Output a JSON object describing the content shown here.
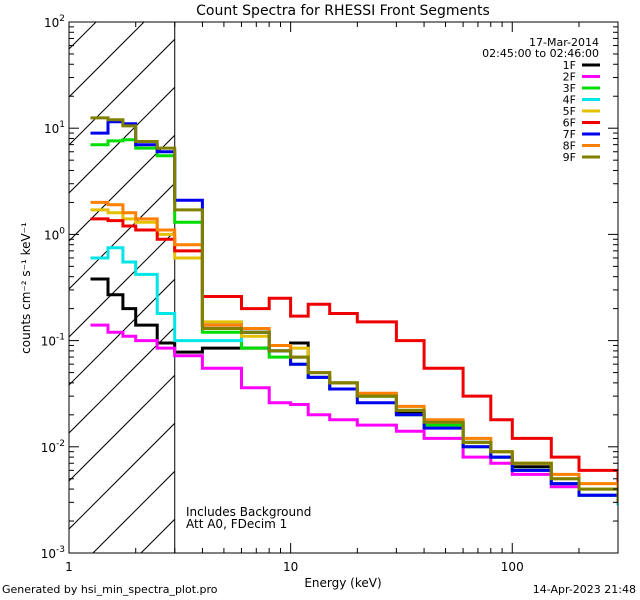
{
  "chart_data": {
    "type": "line",
    "title": "Count Spectra for RHESSI Front Segments",
    "xlabel": "Energy (keV)",
    "ylabel": "counts cm⁻² s⁻¹ keV⁻¹",
    "xscale": "log",
    "yscale": "log",
    "xlim": [
      1,
      300
    ],
    "ylim": [
      0.001,
      100
    ],
    "x_ticks": [
      {
        "value": 1,
        "label": "1"
      },
      {
        "value": 10,
        "label": "10"
      },
      {
        "value": 100,
        "label": "100"
      }
    ],
    "y_ticks": [
      {
        "value": 0.001,
        "base": "10",
        "exp": "-3"
      },
      {
        "value": 0.01,
        "base": "10",
        "exp": "-2"
      },
      {
        "value": 0.1,
        "base": "10",
        "exp": "-1"
      },
      {
        "value": 1,
        "base": "10",
        "exp": "0"
      },
      {
        "value": 10,
        "base": "10",
        "exp": "1"
      },
      {
        "value": 100,
        "base": "10",
        "exp": "2"
      }
    ],
    "date": "17-Mar-2014",
    "time_range": "02:45:00 to 02:46:00",
    "hatched_region_upper_kev": 3,
    "annotations": [
      "Includes Background",
      "Att A0, FDecim 1"
    ],
    "series": [
      {
        "name": "1F",
        "color": "#000000",
        "points": [
          [
            1.25,
            0.38
          ],
          [
            1.5,
            0.27
          ],
          [
            1.75,
            0.2
          ],
          [
            2.0,
            0.14
          ],
          [
            2.5,
            0.095
          ],
          [
            3.0,
            0.078
          ],
          [
            4,
            0.085
          ],
          [
            6,
            0.085
          ],
          [
            8,
            0.08
          ],
          [
            10,
            0.095
          ],
          [
            12,
            0.045
          ],
          [
            15,
            0.04
          ],
          [
            20,
            0.03
          ],
          [
            30,
            0.021
          ],
          [
            40,
            0.017
          ],
          [
            60,
            0.011
          ],
          [
            80,
            0.008
          ],
          [
            100,
            0.0065
          ],
          [
            150,
            0.0045
          ],
          [
            200,
            0.0035
          ],
          [
            300,
            0.0028
          ]
        ]
      },
      {
        "name": "2F",
        "color": "#ff00ff",
        "points": [
          [
            1.25,
            0.14
          ],
          [
            1.5,
            0.12
          ],
          [
            1.75,
            0.11
          ],
          [
            2.0,
            0.1
          ],
          [
            2.5,
            0.085
          ],
          [
            3.0,
            0.072
          ],
          [
            4,
            0.055
          ],
          [
            6,
            0.036
          ],
          [
            8,
            0.026
          ],
          [
            10,
            0.025
          ],
          [
            12,
            0.02
          ],
          [
            15,
            0.018
          ],
          [
            20,
            0.016
          ],
          [
            30,
            0.014
          ],
          [
            40,
            0.012
          ],
          [
            60,
            0.008
          ],
          [
            80,
            0.007
          ],
          [
            100,
            0.0055
          ],
          [
            150,
            0.0042
          ],
          [
            200,
            0.0035
          ],
          [
            300,
            0.0028
          ]
        ]
      },
      {
        "name": "3F",
        "color": "#00dd00",
        "points": [
          [
            1.25,
            7.0
          ],
          [
            1.5,
            7.6
          ],
          [
            1.75,
            7.8
          ],
          [
            2.0,
            6.5
          ],
          [
            2.5,
            5.5
          ],
          [
            3.0,
            1.3
          ],
          [
            4,
            0.12
          ],
          [
            6,
            0.085
          ],
          [
            8,
            0.07
          ],
          [
            10,
            0.06
          ],
          [
            12,
            0.045
          ],
          [
            15,
            0.035
          ],
          [
            20,
            0.03
          ],
          [
            30,
            0.02
          ],
          [
            40,
            0.016
          ],
          [
            60,
            0.01
          ],
          [
            80,
            0.008
          ],
          [
            100,
            0.006
          ],
          [
            150,
            0.0045
          ],
          [
            200,
            0.0035
          ],
          [
            300,
            0.003
          ]
        ]
      },
      {
        "name": "4F",
        "color": "#00e5e5",
        "points": [
          [
            1.25,
            0.6
          ],
          [
            1.5,
            0.75
          ],
          [
            1.75,
            0.55
          ],
          [
            2.0,
            0.42
          ],
          [
            2.5,
            0.18
          ],
          [
            3.0,
            0.1
          ],
          [
            4,
            0.1
          ],
          [
            6,
            0.12
          ],
          [
            8,
            0.08
          ],
          [
            10,
            0.07
          ],
          [
            12,
            0.045
          ],
          [
            15,
            0.035
          ],
          [
            20,
            0.03
          ],
          [
            30,
            0.022
          ],
          [
            40,
            0.017
          ],
          [
            60,
            0.011
          ],
          [
            80,
            0.008
          ],
          [
            100,
            0.006
          ],
          [
            150,
            0.0045
          ],
          [
            200,
            0.0035
          ],
          [
            300,
            0.0028
          ]
        ]
      },
      {
        "name": "5F",
        "color": "#e5c000",
        "points": [
          [
            1.25,
            1.7
          ],
          [
            1.5,
            1.6
          ],
          [
            1.75,
            1.4
          ],
          [
            2.0,
            1.3
          ],
          [
            2.5,
            1.0
          ],
          [
            3.0,
            0.6
          ],
          [
            4,
            0.15
          ],
          [
            6,
            0.11
          ],
          [
            8,
            0.09
          ],
          [
            10,
            0.085
          ],
          [
            12,
            0.05
          ],
          [
            15,
            0.04
          ],
          [
            20,
            0.03
          ],
          [
            30,
            0.022
          ],
          [
            40,
            0.017
          ],
          [
            60,
            0.011
          ],
          [
            80,
            0.009
          ],
          [
            100,
            0.007
          ],
          [
            150,
            0.005
          ],
          [
            200,
            0.004
          ],
          [
            300,
            0.003
          ]
        ]
      },
      {
        "name": "6F",
        "color": "#ee0000",
        "points": [
          [
            1.25,
            1.4
          ],
          [
            1.5,
            1.35
          ],
          [
            1.75,
            1.2
          ],
          [
            2.0,
            1.1
          ],
          [
            2.5,
            0.9
          ],
          [
            3.0,
            0.7
          ],
          [
            4,
            0.26
          ],
          [
            6,
            0.2
          ],
          [
            8,
            0.25
          ],
          [
            10,
            0.17
          ],
          [
            12,
            0.22
          ],
          [
            15,
            0.18
          ],
          [
            20,
            0.15
          ],
          [
            30,
            0.1
          ],
          [
            40,
            0.055
          ],
          [
            60,
            0.03
          ],
          [
            80,
            0.018
          ],
          [
            100,
            0.012
          ],
          [
            150,
            0.008
          ],
          [
            200,
            0.006
          ],
          [
            300,
            0.004
          ]
        ]
      },
      {
        "name": "7F",
        "color": "#0000ee",
        "points": [
          [
            1.25,
            9.0
          ],
          [
            1.5,
            11.5
          ],
          [
            1.75,
            11.0
          ],
          [
            2.0,
            7.0
          ],
          [
            2.5,
            6.0
          ],
          [
            3.0,
            2.1
          ],
          [
            4,
            0.14
          ],
          [
            6,
            0.12
          ],
          [
            8,
            0.08
          ],
          [
            10,
            0.06
          ],
          [
            12,
            0.045
          ],
          [
            15,
            0.035
          ],
          [
            20,
            0.026
          ],
          [
            30,
            0.02
          ],
          [
            40,
            0.015
          ],
          [
            60,
            0.01
          ],
          [
            80,
            0.008
          ],
          [
            100,
            0.006
          ],
          [
            150,
            0.0045
          ],
          [
            200,
            0.0035
          ],
          [
            300,
            0.003
          ]
        ]
      },
      {
        "name": "8F",
        "color": "#ff8000",
        "points": [
          [
            1.25,
            2.0
          ],
          [
            1.5,
            1.9
          ],
          [
            1.75,
            1.6
          ],
          [
            2.0,
            1.4
          ],
          [
            2.5,
            1.1
          ],
          [
            3.0,
            0.8
          ],
          [
            4,
            0.14
          ],
          [
            6,
            0.13
          ],
          [
            8,
            0.09
          ],
          [
            10,
            0.07
          ],
          [
            12,
            0.05
          ],
          [
            15,
            0.04
          ],
          [
            20,
            0.032
          ],
          [
            30,
            0.024
          ],
          [
            40,
            0.018
          ],
          [
            60,
            0.012
          ],
          [
            80,
            0.009
          ],
          [
            100,
            0.007
          ],
          [
            150,
            0.0055
          ],
          [
            200,
            0.0045
          ],
          [
            300,
            0.0035
          ]
        ]
      },
      {
        "name": "9F",
        "color": "#808000",
        "points": [
          [
            1.25,
            12.5
          ],
          [
            1.5,
            12.0
          ],
          [
            1.75,
            10.5
          ],
          [
            2.0,
            7.5
          ],
          [
            2.5,
            6.5
          ],
          [
            3.0,
            1.7
          ],
          [
            4,
            0.13
          ],
          [
            6,
            0.12
          ],
          [
            8,
            0.08
          ],
          [
            10,
            0.07
          ],
          [
            12,
            0.05
          ],
          [
            15,
            0.04
          ],
          [
            20,
            0.03
          ],
          [
            30,
            0.022
          ],
          [
            40,
            0.017
          ],
          [
            60,
            0.011
          ],
          [
            80,
            0.009
          ],
          [
            100,
            0.007
          ],
          [
            150,
            0.005
          ],
          [
            200,
            0.004
          ],
          [
            300,
            0.003
          ]
        ]
      }
    ]
  },
  "footer": {
    "left": "Generated by hsi_min_spectra_plot.pro",
    "right": "14-Apr-2023 21:48"
  }
}
